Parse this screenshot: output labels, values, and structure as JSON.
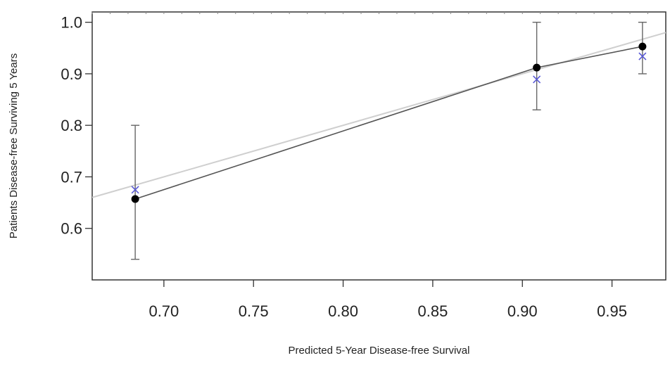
{
  "chart_data": {
    "type": "scatter",
    "title": "",
    "xlabel": "Predicted 5-Year Disease-free Survival",
    "ylabel": "Patients  Disease-free Surviving 5 Years",
    "xlim": [
      0.66,
      0.98
    ],
    "ylim": [
      0.5,
      1.02
    ],
    "x_ticks": [
      "0.70",
      "0.75",
      "0.80",
      "0.85",
      "0.90",
      "0.95"
    ],
    "y_ticks": [
      "0.6",
      "0.7",
      "0.8",
      "0.9",
      "1.0"
    ],
    "grid": false,
    "legend": "none",
    "observed": [
      {
        "x": 0.684,
        "y": 0.657,
        "ci_low": 0.54,
        "ci_high": 0.8
      },
      {
        "x": 0.908,
        "y": 0.912,
        "ci_low": 0.83,
        "ci_high": 1.0
      },
      {
        "x": 0.967,
        "y": 0.953,
        "ci_low": 0.9,
        "ci_high": 1.0
      }
    ],
    "bias_corrected": [
      {
        "x": 0.684,
        "y": 0.675
      },
      {
        "x": 0.908,
        "y": 0.889
      },
      {
        "x": 0.967,
        "y": 0.934
      }
    ],
    "ideal_line": [
      [
        0.66,
        0.66
      ],
      [
        0.98,
        0.98
      ]
    ],
    "colors": {
      "observed_point": "#000000",
      "bias_corrected_marker": "#5a5ad6",
      "observed_line": "#555555",
      "ideal_line": "#cfcfcf",
      "error_bar": "#666666"
    }
  }
}
